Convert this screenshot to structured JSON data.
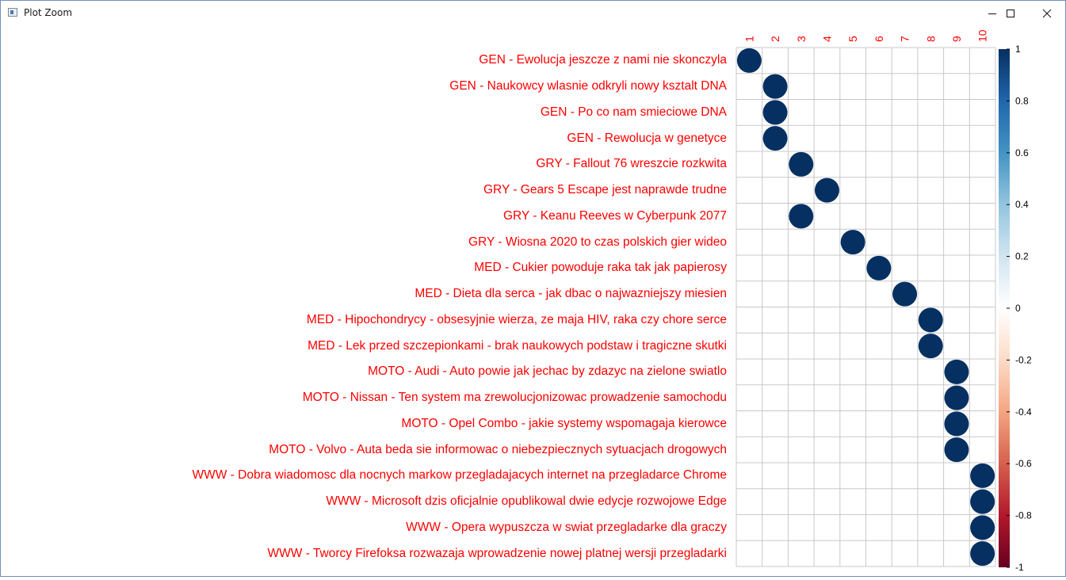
{
  "window": {
    "title": "Plot Zoom",
    "controls": [
      "minimize",
      "maximize",
      "close"
    ]
  },
  "chart_data": {
    "type": "heatmap",
    "title": "",
    "xlabel": "",
    "ylabel": "",
    "marker": "circle",
    "grid": true,
    "columns": [
      "1",
      "2",
      "3",
      "4",
      "5",
      "6",
      "7",
      "8",
      "9",
      "10"
    ],
    "rows": [
      "GEN - Ewolucja jeszcze z nami nie skonczyla",
      "GEN - Naukowcy wlasnie odkryli nowy ksztalt DNA",
      "GEN - Po co nam smieciowe DNA",
      "GEN - Rewolucja w genetyce",
      "GRY - Fallout 76 wreszcie rozkwita",
      "GRY - Gears 5 Escape jest naprawde trudne",
      "GRY - Keanu Reeves w Cyberpunk 2077",
      "GRY - Wiosna 2020 to czas polskich gier wideo",
      "MED - Cukier powoduje raka tak jak papierosy",
      "MED - Dieta dla serca - jak dbac o najwazniejszy miesien",
      "MED - Hipochondrycy - obsesyjnie wierza, ze maja HIV, raka czy chore serce",
      "MED - Lek przed szczepionkami - brak naukowych podstaw i tragiczne skutki",
      "MOTO - Audi - Auto powie jak jechac by zdazyc na zielone swiatlo",
      "MOTO - Nissan - Ten system ma zrewolucjonizowac prowadzenie samochodu",
      "MOTO - Opel Combo - jakie systemy wspomagaja kierowce",
      "MOTO - Volvo - Auta beda sie informowac o niebezpiecznych sytuacjach drogowych",
      "WWW - Dobra wiadomosc dla nocnych markow przegladajacych internet na przegladarce Chrome",
      "WWW - Microsoft dzis oficjalnie opublikowal dwie edycje rozwojowe Edge",
      "WWW - Opera wypuszcza w swiat przegladarke dla graczy",
      "WWW - Tworcy Firefoksa rozwazaja wprowadzenie nowej platnej wersji przegladarki"
    ],
    "points": [
      {
        "row": 0,
        "col": 1,
        "value": 1
      },
      {
        "row": 1,
        "col": 2,
        "value": 1
      },
      {
        "row": 2,
        "col": 2,
        "value": 1
      },
      {
        "row": 3,
        "col": 2,
        "value": 1
      },
      {
        "row": 4,
        "col": 3,
        "value": 1
      },
      {
        "row": 5,
        "col": 4,
        "value": 1
      },
      {
        "row": 6,
        "col": 3,
        "value": 1
      },
      {
        "row": 7,
        "col": 5,
        "value": 1
      },
      {
        "row": 8,
        "col": 6,
        "value": 1
      },
      {
        "row": 9,
        "col": 7,
        "value": 1
      },
      {
        "row": 10,
        "col": 8,
        "value": 1
      },
      {
        "row": 11,
        "col": 8,
        "value": 1
      },
      {
        "row": 12,
        "col": 9,
        "value": 1
      },
      {
        "row": 13,
        "col": 9,
        "value": 1
      },
      {
        "row": 14,
        "col": 9,
        "value": 1
      },
      {
        "row": 15,
        "col": 9,
        "value": 1
      },
      {
        "row": 16,
        "col": 10,
        "value": 1
      },
      {
        "row": 17,
        "col": 10,
        "value": 1
      },
      {
        "row": 18,
        "col": 10,
        "value": 1
      },
      {
        "row": 19,
        "col": 10,
        "value": 1
      }
    ],
    "colorbar": {
      "range": [
        -1,
        1
      ],
      "ticks": [
        "1",
        "0.8",
        "0.6",
        "0.4",
        "0.2",
        "0",
        "-0.2",
        "-0.4",
        "-0.6",
        "-0.8",
        "-1"
      ],
      "colors": [
        "#67001f",
        "#b2182b",
        "#d6604d",
        "#f4a582",
        "#fddbc7",
        "#ffffff",
        "#d1e5f0",
        "#92c5de",
        "#4393c3",
        "#2166ac",
        "#053061"
      ]
    },
    "label_color": "#ff0000",
    "point_color": "#053061",
    "grid_color": "#c8c8c8"
  }
}
